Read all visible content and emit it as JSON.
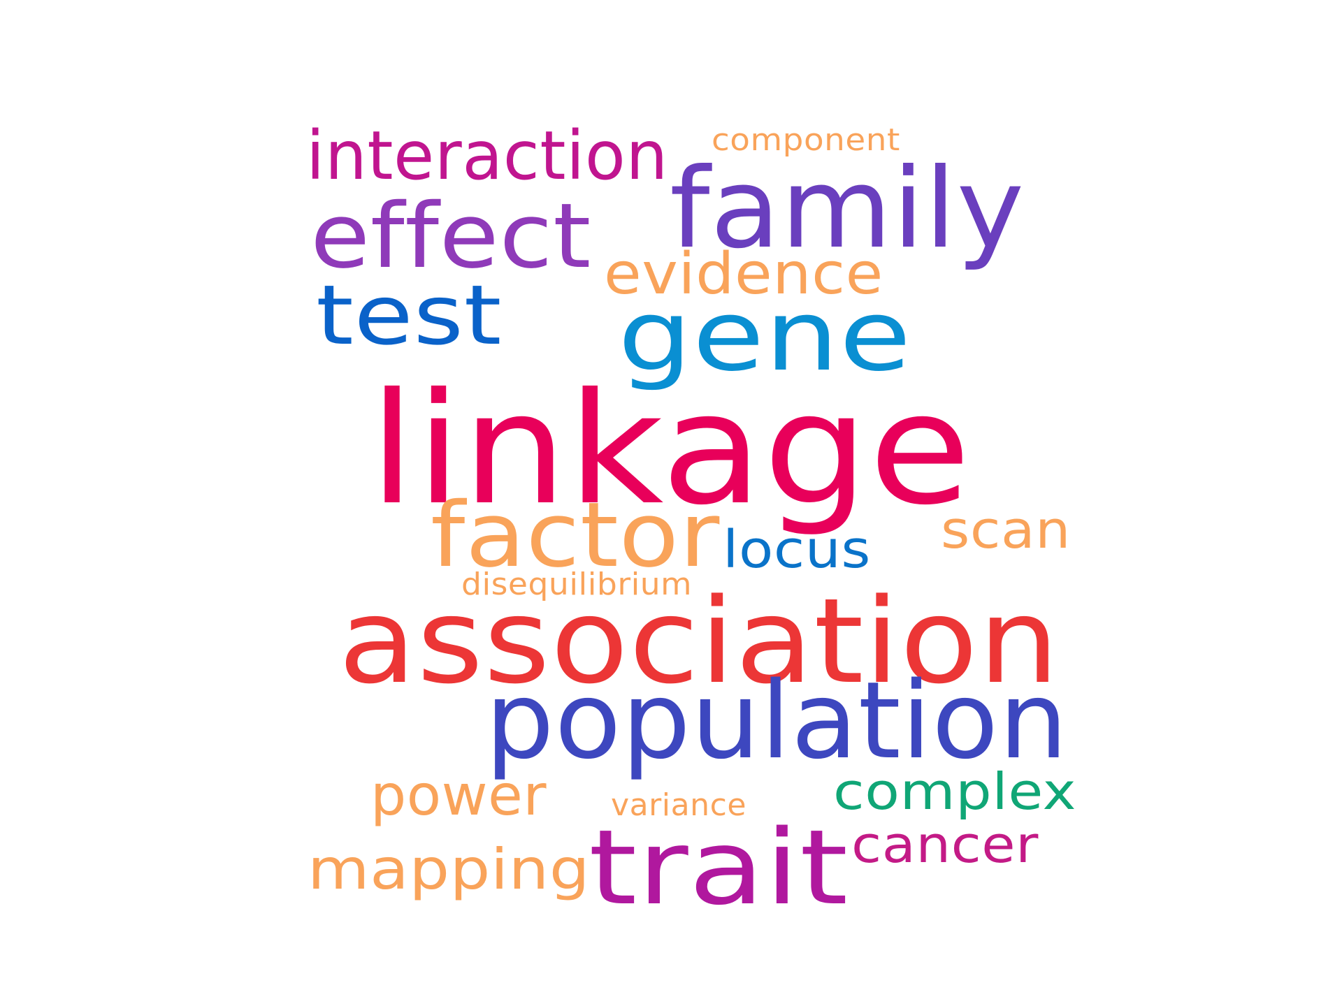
{
  "words": [
    {
      "text": "linkage",
      "color": "#e8005a"
    },
    {
      "text": "association",
      "color": "#ec3636"
    },
    {
      "text": "population",
      "color": "#3d47bf"
    },
    {
      "text": "family",
      "color": "#6a3fbe"
    },
    {
      "text": "gene",
      "color": "#0a8fd2"
    },
    {
      "text": "trait",
      "color": "#b0189e"
    },
    {
      "text": "factor",
      "color": "#f9a35a"
    },
    {
      "text": "effect",
      "color": "#8f3ab9"
    },
    {
      "text": "test",
      "color": "#0a62c9"
    },
    {
      "text": "interaction",
      "color": "#c0158f"
    },
    {
      "text": "evidence",
      "color": "#f9a35a"
    },
    {
      "text": "locus",
      "color": "#0a73c9"
    },
    {
      "text": "scan",
      "color": "#f9a35a"
    },
    {
      "text": "complex",
      "color": "#10a676"
    },
    {
      "text": "cancer",
      "color": "#c31a86"
    },
    {
      "text": "mapping",
      "color": "#f9a35a"
    },
    {
      "text": "power",
      "color": "#f9a35a"
    },
    {
      "text": "component",
      "color": "#f9a35a"
    },
    {
      "text": "disequilibrium",
      "color": "#f9a35a"
    },
    {
      "text": "variance",
      "color": "#f9a35a"
    }
  ]
}
